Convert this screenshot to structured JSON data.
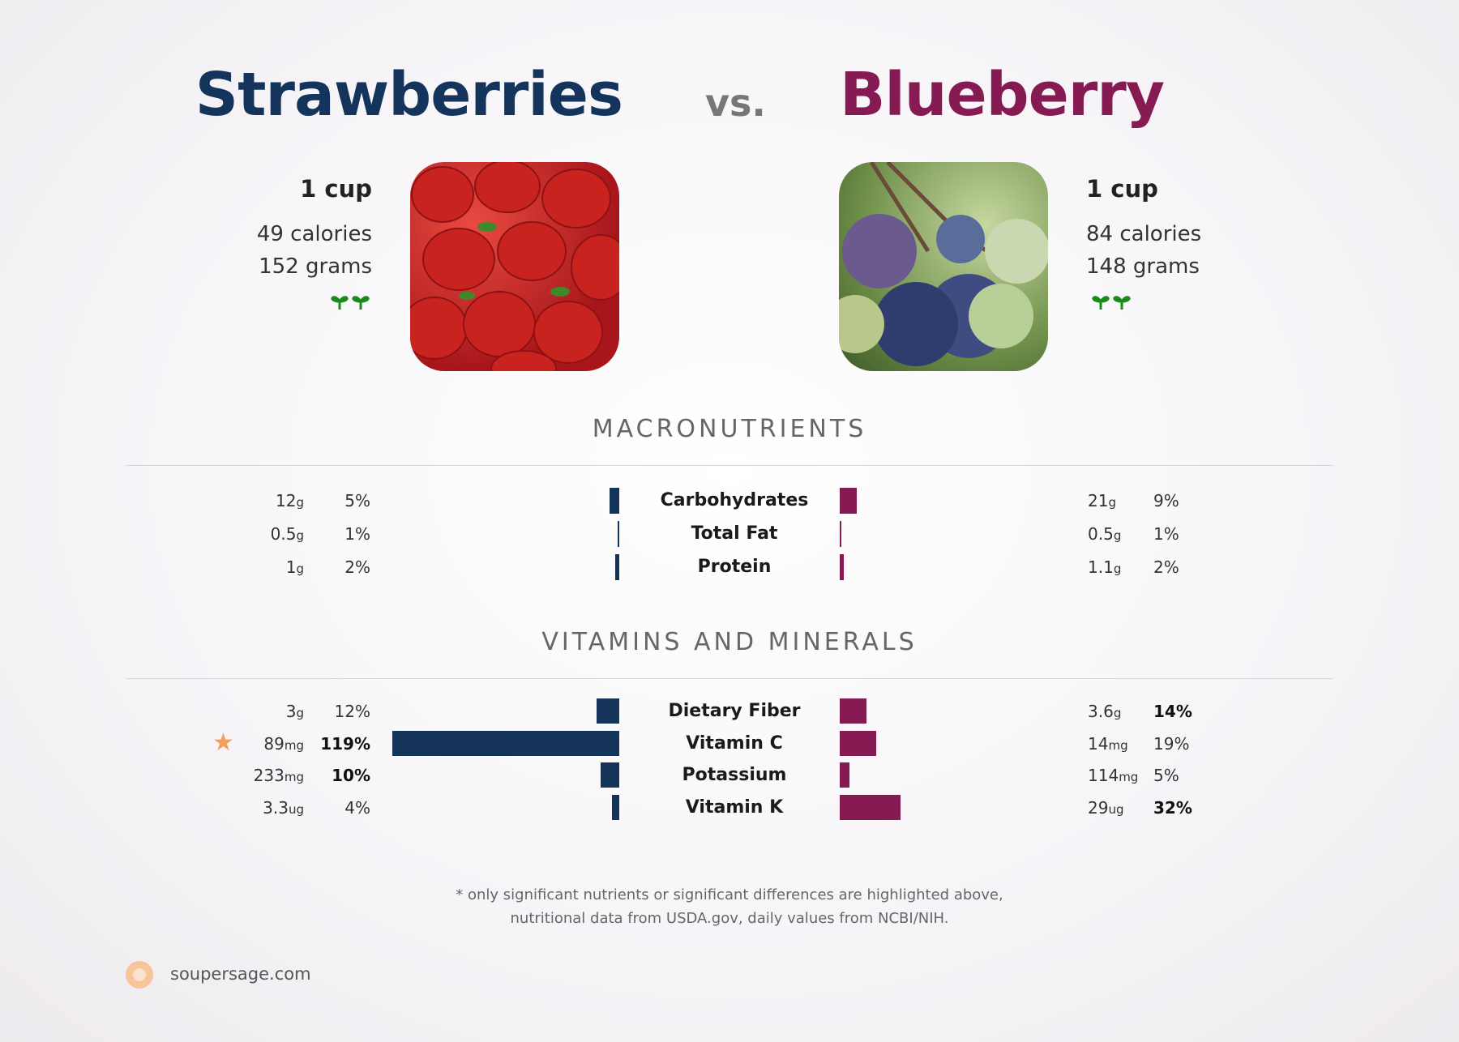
{
  "header": {
    "left_food": "Strawberries",
    "vs": "vs.",
    "right_food": "Blueberry"
  },
  "left": {
    "portion": "1 cup",
    "calories": "49 calories",
    "grams": "152 grams",
    "icon": "sprout-icon",
    "photo": "strawberries-photo"
  },
  "right": {
    "portion": "1 cup",
    "calories": "84 calories",
    "grams": "148 grams",
    "icon": "sprout-icon",
    "photo": "blueberries-photo"
  },
  "sections": {
    "macro_title": "MACRONUTRIENTS",
    "vitamins_title": "VITAMINS AND MINERALS"
  },
  "colors": {
    "left": "#14345c",
    "right": "#861a52",
    "star": "#f4a05a"
  },
  "chart_data": [
    {
      "type": "bar",
      "orientation": "horizontal-mirrored",
      "categories": [
        "Carbohydrates",
        "Total Fat",
        "Protein"
      ],
      "series": [
        {
          "name": "Strawberries",
          "amounts": [
            "12",
            "0.5",
            "1"
          ],
          "units": [
            "g",
            "g",
            "g"
          ],
          "pct_labels": [
            "5%",
            "1%",
            "2%"
          ],
          "values": [
            5,
            1,
            2
          ],
          "bold": [
            false,
            false,
            false
          ]
        },
        {
          "name": "Blueberry",
          "amounts": [
            "21",
            "0.5",
            "1.1"
          ],
          "units": [
            "g",
            "g",
            "g"
          ],
          "pct_labels": [
            "9%",
            "1%",
            "2%"
          ],
          "values": [
            9,
            1,
            2
          ],
          "bold": [
            false,
            false,
            false
          ]
        }
      ]
    },
    {
      "type": "bar",
      "orientation": "horizontal-mirrored",
      "categories": [
        "Dietary Fiber",
        "Vitamin C",
        "Potassium",
        "Vitamin K"
      ],
      "series": [
        {
          "name": "Strawberries",
          "amounts": [
            "3",
            "89",
            "233",
            "3.3"
          ],
          "units": [
            "g",
            "mg",
            "mg",
            "ug"
          ],
          "pct_labels": [
            "12%",
            "119%",
            "10%",
            "4%"
          ],
          "values": [
            12,
            119,
            10,
            4
          ],
          "bold": [
            false,
            true,
            true,
            false
          ],
          "star": [
            false,
            true,
            false,
            false
          ]
        },
        {
          "name": "Blueberry",
          "amounts": [
            "3.6",
            "14",
            "114",
            "29"
          ],
          "units": [
            "g",
            "mg",
            "mg",
            "ug"
          ],
          "pct_labels": [
            "14%",
            "19%",
            "5%",
            "32%"
          ],
          "values": [
            14,
            19,
            5,
            32
          ],
          "bold": [
            true,
            false,
            false,
            true
          ]
        }
      ]
    }
  ],
  "footer": {
    "note_line1": "* only significant nutrients or significant differences are highlighted above,",
    "note_line2": "nutritional data from USDA.gov, daily values from NCBI/NIH.",
    "site": "soupersage.com",
    "logo": "soupersage-logo-icon"
  }
}
